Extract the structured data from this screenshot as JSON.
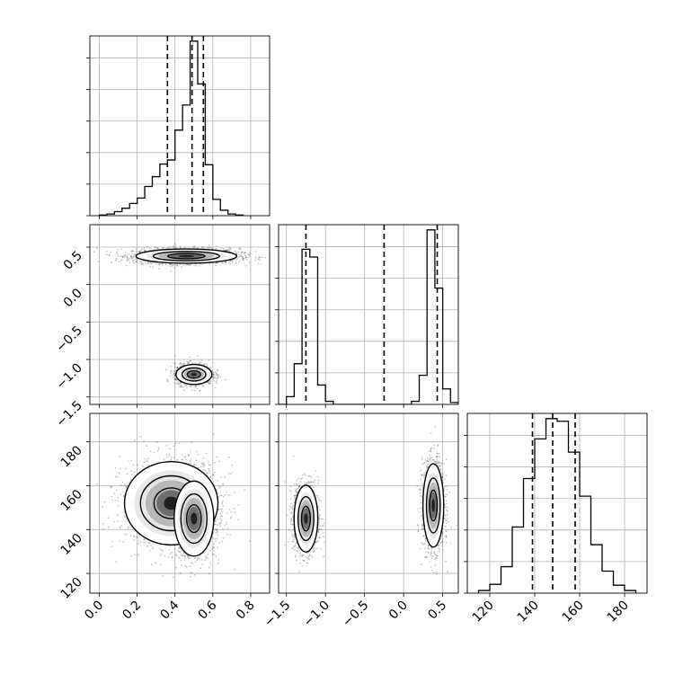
{
  "chart_data": {
    "type": "corner",
    "grid": true,
    "panels": [
      {
        "id": "hist-x",
        "type": "histogram",
        "bins_x": [
          0.0,
          0.04,
          0.08,
          0.12,
          0.16,
          0.2,
          0.24,
          0.28,
          0.32,
          0.36,
          0.4,
          0.44,
          0.48,
          0.52,
          0.56,
          0.6,
          0.64,
          0.68,
          0.72,
          0.76
        ],
        "counts": [
          0.2,
          0.5,
          1.2,
          2.2,
          3.6,
          5.2,
          8.6,
          11.5,
          15.2,
          16.4,
          25.2,
          32.6,
          51.4,
          38.8,
          15.0,
          4.8,
          1.6,
          0.5,
          0.2
        ],
        "quantiles": [
          0.36,
          0.49,
          0.55
        ],
        "xlim": [
          -0.05,
          0.9
        ]
      },
      {
        "id": "hist-y",
        "type": "histogram",
        "bins_x": [
          -1.6,
          -1.5,
          -1.4,
          -1.3,
          -1.2,
          -1.1,
          -1.0,
          -0.9,
          -0.8,
          -0.7,
          -0.6,
          -0.5,
          -0.4,
          -0.3,
          -0.2,
          -0.1,
          0.0,
          0.1,
          0.2,
          0.3,
          0.4,
          0.5,
          0.6,
          0.7
        ],
        "counts": [
          0.0,
          2.0,
          10.5,
          40.0,
          38.0,
          5.0,
          0.8,
          0.0,
          0.0,
          0.0,
          0.0,
          0.0,
          0.0,
          0.0,
          0.0,
          0.0,
          0.0,
          0.8,
          7.5,
          45.0,
          30.0,
          4.0,
          0.5
        ],
        "quantiles": [
          -1.25,
          -0.25,
          0.43
        ],
        "xlim": [
          -1.6,
          0.7
        ]
      },
      {
        "id": "hist-z",
        "type": "histogram",
        "bins_x": [
          115,
          120,
          125,
          130,
          135,
          140,
          145,
          150,
          155,
          160,
          165,
          170,
          175,
          180,
          185
        ],
        "counts": [
          0.3,
          1.0,
          3.0,
          7.5,
          13.0,
          17.5,
          19.8,
          19.5,
          16.0,
          11.0,
          5.5,
          2.5,
          0.9,
          0.3
        ],
        "quantiles": [
          139,
          148,
          158
        ],
        "xlim": [
          110,
          190
        ]
      },
      {
        "id": "scatter-x-y",
        "type": "density-contour",
        "xlim": [
          -0.05,
          0.9
        ],
        "ylim": [
          -1.6,
          0.8
        ],
        "clusters": [
          {
            "cx": 0.46,
            "cy": 0.38,
            "sx": 0.14,
            "sy": 0.05,
            "n": 1900
          },
          {
            "cx": 0.5,
            "cy": -1.2,
            "sx": 0.05,
            "sy": 0.07,
            "n": 1100
          }
        ]
      },
      {
        "id": "scatter-x-z",
        "type": "density-contour",
        "xlim": [
          -0.05,
          0.9
        ],
        "ylim": [
          111,
          193
        ],
        "clusters": [
          {
            "cx": 0.38,
            "cy": 152,
            "sx": 0.13,
            "sy": 10,
            "n": 1700
          },
          {
            "cx": 0.5,
            "cy": 145,
            "sx": 0.055,
            "sy": 9,
            "n": 1400
          }
        ]
      },
      {
        "id": "scatter-y-z",
        "type": "density-contour",
        "xlim": [
          -1.6,
          0.7
        ],
        "ylim": [
          111,
          193
        ],
        "clusters": [
          {
            "cx": -1.25,
            "cy": 145,
            "sx": 0.08,
            "sy": 8,
            "n": 1300
          },
          {
            "cx": 0.38,
            "cy": 151,
            "sx": 0.07,
            "sy": 10,
            "n": 1500
          }
        ]
      }
    ],
    "tick_labels": {
      "x1": [
        "0.0",
        "0.2",
        "0.4",
        "0.6",
        "0.8"
      ],
      "x2": [
        "−1.5",
        "−1.0",
        "−0.5",
        "0.0",
        "0.5"
      ],
      "x3": [
        "120",
        "140",
        "160",
        "180"
      ],
      "y2": [
        "0.5",
        "0.0",
        "−0.5",
        "−1.0",
        "−1.5"
      ],
      "y3": [
        "180",
        "160",
        "140",
        "120"
      ]
    }
  }
}
